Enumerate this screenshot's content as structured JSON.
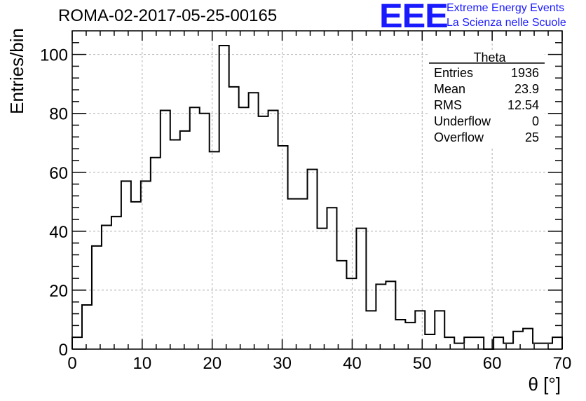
{
  "header": {
    "run_title": "ROMA-02-2017-05-25-00165",
    "logo_text": "EEE",
    "logo_line1": "Extreme Energy Events",
    "logo_line2": "La Scienza nelle Scuole",
    "logo_color": "#1a1aff"
  },
  "stats_box": {
    "title": "Theta",
    "rows": [
      {
        "label": "Entries",
        "value": "1936"
      },
      {
        "label": "Mean",
        "value": "23.9"
      },
      {
        "label": "RMS",
        "value": "12.54"
      },
      {
        "label": "Underflow",
        "value": "0"
      },
      {
        "label": "Overflow",
        "value": "25"
      }
    ]
  },
  "chart_data": {
    "type": "bar",
    "style": "step-histogram",
    "xlabel": "θ [°]",
    "ylabel": "Entries/bin",
    "xlim": [
      0,
      70
    ],
    "ylim": [
      0,
      108
    ],
    "bin_width": 1.4,
    "grid": true,
    "x_ticks": [
      0,
      10,
      20,
      30,
      40,
      50,
      60,
      70
    ],
    "y_ticks": [
      0,
      20,
      40,
      60,
      80,
      100
    ],
    "values": [
      4,
      15,
      35,
      42,
      45,
      57,
      50,
      57,
      65,
      81,
      71,
      74,
      82,
      80,
      67,
      103,
      89,
      82,
      87,
      79,
      81,
      69,
      51,
      51,
      61,
      41,
      48,
      30,
      24,
      41,
      13,
      22,
      23,
      10,
      9,
      13,
      5,
      13,
      4,
      2,
      4,
      4,
      0,
      4,
      2,
      6,
      7,
      2,
      2,
      4
    ],
    "line_color": "#000000",
    "grid_color": "#b0b0b0"
  }
}
